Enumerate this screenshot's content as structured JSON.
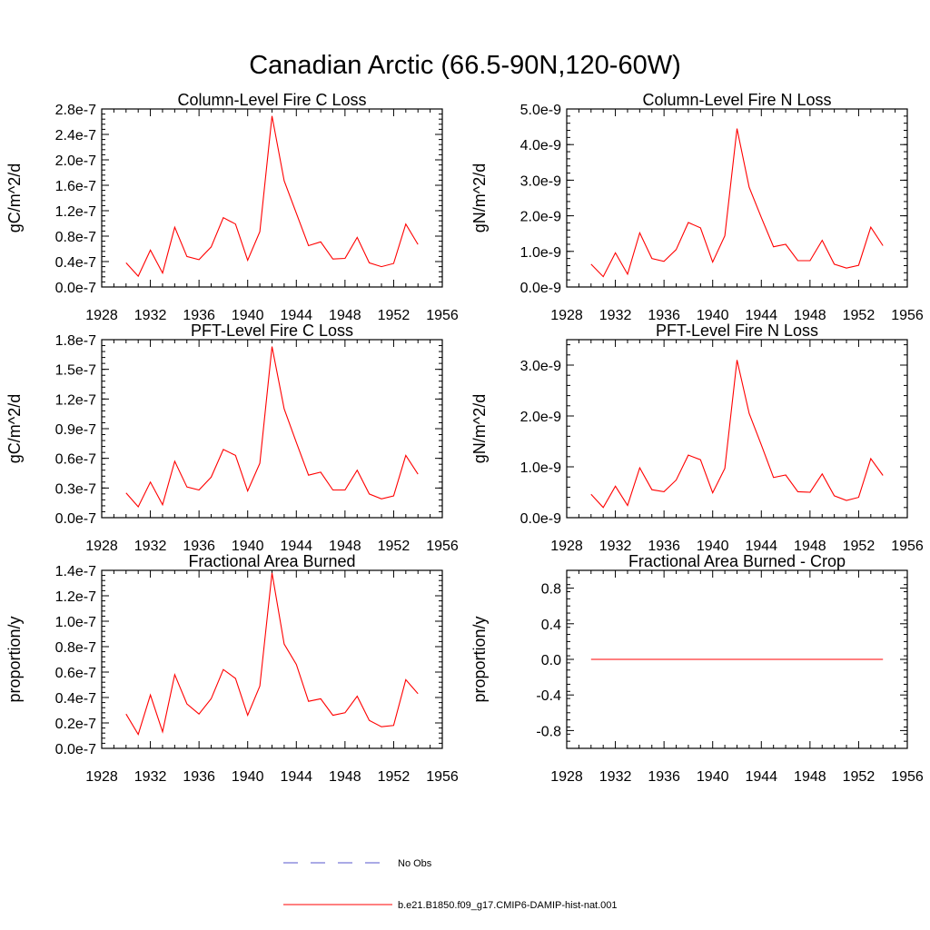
{
  "figure": {
    "title": "Canadian Arctic (66.5-90N,120-60W)"
  },
  "chart_data": [
    {
      "type": "line",
      "title": "Column-Level Fire C Loss",
      "ylabel": "gC/m^2/d",
      "xlim": [
        1928,
        1956
      ],
      "ylim": [
        0,
        2.8e-07
      ],
      "xticks": [
        "1928",
        "1932",
        "1936",
        "1940",
        "1944",
        "1948",
        "1952",
        "1956"
      ],
      "yticks": [
        {
          "v": 0,
          "label": "0.0e-7"
        },
        {
          "v": 4e-08,
          "label": "0.4e-7"
        },
        {
          "v": 8e-08,
          "label": "0.8e-7"
        },
        {
          "v": 1.2e-07,
          "label": "1.2e-7"
        },
        {
          "v": 1.6e-07,
          "label": "1.6e-7"
        },
        {
          "v": 2e-07,
          "label": "2.0e-7"
        },
        {
          "v": 2.4e-07,
          "label": "2.4e-7"
        },
        {
          "v": 2.8e-07,
          "label": "2.8e-7"
        }
      ],
      "series": [
        {
          "name": "b.e21.B1850.f09_g17.CMIP6-DAMIP-hist-nat.001",
          "color": "#ff0000",
          "x": [
            1930,
            1931,
            1932,
            1933,
            1934,
            1935,
            1936,
            1937,
            1938,
            1939,
            1940,
            1941,
            1942,
            1943,
            1944,
            1945,
            1946,
            1947,
            1948,
            1949,
            1950,
            1951,
            1952,
            1953,
            1954
          ],
          "y": [
            3.8e-08,
            1.7e-08,
            5.8e-08,
            2.2e-08,
            9.4e-08,
            4.8e-08,
            4.3e-08,
            6.3e-08,
            1.09e-07,
            9.9e-08,
            4.2e-08,
            8.7e-08,
            2.69e-07,
            1.67e-07,
            1.16e-07,
            6.5e-08,
            7.1e-08,
            4.4e-08,
            4.5e-08,
            7.8e-08,
            3.8e-08,
            3.2e-08,
            3.7e-08,
            9.9e-08,
            6.7e-08
          ]
        }
      ]
    },
    {
      "type": "line",
      "title": "Column-Level Fire N Loss",
      "ylabel": "gN/m^2/d",
      "xlim": [
        1928,
        1956
      ],
      "ylim": [
        0,
        5e-09
      ],
      "xticks": [
        "1928",
        "1932",
        "1936",
        "1940",
        "1944",
        "1948",
        "1952",
        "1956"
      ],
      "yticks": [
        {
          "v": 0,
          "label": "0.0e-9"
        },
        {
          "v": 1e-09,
          "label": "1.0e-9"
        },
        {
          "v": 2e-09,
          "label": "2.0e-9"
        },
        {
          "v": 3e-09,
          "label": "3.0e-9"
        },
        {
          "v": 4e-09,
          "label": "4.0e-9"
        },
        {
          "v": 5e-09,
          "label": "5.0e-9"
        }
      ],
      "series": [
        {
          "name": "b.e21.B1850.f09_g17.CMIP6-DAMIP-hist-nat.001",
          "color": "#ff0000",
          "x": [
            1930,
            1931,
            1932,
            1933,
            1934,
            1935,
            1936,
            1937,
            1938,
            1939,
            1940,
            1941,
            1942,
            1943,
            1944,
            1945,
            1946,
            1947,
            1948,
            1949,
            1950,
            1951,
            1952,
            1953,
            1954
          ],
          "y": [
            6.4e-10,
            2.9e-10,
            9.6e-10,
            3.6e-10,
            1.52e-09,
            8e-10,
            7.2e-10,
            1.05e-09,
            1.81e-09,
            1.66e-09,
            7e-10,
            1.44e-09,
            4.45e-09,
            2.8e-09,
            1.95e-09,
            1.13e-09,
            1.2e-09,
            7.4e-10,
            7.4e-10,
            1.31e-09,
            6.4e-10,
            5.3e-10,
            6.1e-10,
            1.68e-09,
            1.16e-09
          ]
        }
      ]
    },
    {
      "type": "line",
      "title": "PFT-Level Fire C Loss",
      "ylabel": "gC/m^2/d",
      "xlim": [
        1928,
        1956
      ],
      "ylim": [
        0,
        1.8e-07
      ],
      "xticks": [
        "1928",
        "1932",
        "1936",
        "1940",
        "1944",
        "1948",
        "1952",
        "1956"
      ],
      "yticks": [
        {
          "v": 0,
          "label": "0.0e-7"
        },
        {
          "v": 3e-08,
          "label": "0.3e-7"
        },
        {
          "v": 6e-08,
          "label": "0.6e-7"
        },
        {
          "v": 9e-08,
          "label": "0.9e-7"
        },
        {
          "v": 1.2e-07,
          "label": "1.2e-7"
        },
        {
          "v": 1.5e-07,
          "label": "1.5e-7"
        },
        {
          "v": 1.8e-07,
          "label": "1.8e-7"
        }
      ],
      "series": [
        {
          "name": "b.e21.B1850.f09_g17.CMIP6-DAMIP-hist-nat.001",
          "color": "#ff0000",
          "x": [
            1930,
            1931,
            1932,
            1933,
            1934,
            1935,
            1936,
            1937,
            1938,
            1939,
            1940,
            1941,
            1942,
            1943,
            1944,
            1945,
            1946,
            1947,
            1948,
            1949,
            1950,
            1951,
            1952,
            1953,
            1954
          ],
          "y": [
            2.5e-08,
            1.1e-08,
            3.6e-08,
            1.3e-08,
            5.7e-08,
            3.1e-08,
            2.8e-08,
            4.1e-08,
            6.9e-08,
            6.3e-08,
            2.7e-08,
            5.5e-08,
            1.73e-07,
            1.1e-07,
            7.6e-08,
            4.3e-08,
            4.6e-08,
            2.8e-08,
            2.8e-08,
            4.8e-08,
            2.4e-08,
            1.9e-08,
            2.2e-08,
            6.3e-08,
            4.4e-08
          ]
        }
      ]
    },
    {
      "type": "line",
      "title": "PFT-Level Fire N Loss",
      "ylabel": "gN/m^2/d",
      "xlim": [
        1928,
        1956
      ],
      "ylim": [
        0,
        3.5e-09
      ],
      "xticks": [
        "1928",
        "1932",
        "1936",
        "1940",
        "1944",
        "1948",
        "1952",
        "1956"
      ],
      "yticks": [
        {
          "v": 0,
          "label": "0.0e-9"
        },
        {
          "v": 1e-09,
          "label": "1.0e-9"
        },
        {
          "v": 2e-09,
          "label": "2.0e-9"
        },
        {
          "v": 3e-09,
          "label": "3.0e-9"
        }
      ],
      "series": [
        {
          "name": "b.e21.B1850.f09_g17.CMIP6-DAMIP-hist-nat.001",
          "color": "#ff0000",
          "x": [
            1930,
            1931,
            1932,
            1933,
            1934,
            1935,
            1936,
            1937,
            1938,
            1939,
            1940,
            1941,
            1942,
            1943,
            1944,
            1945,
            1946,
            1947,
            1948,
            1949,
            1950,
            1951,
            1952,
            1953,
            1954
          ],
          "y": [
            4.6e-10,
            2e-10,
            6.2e-10,
            2.4e-10,
            9.8e-10,
            5.5e-10,
            5.1e-10,
            7.4e-10,
            1.23e-09,
            1.14e-09,
            4.9e-10,
            9.7e-10,
            3.1e-09,
            2.05e-09,
            1.43e-09,
            7.9e-10,
            8.4e-10,
            5.1e-10,
            5e-10,
            8.6e-10,
            4.3e-10,
            3.4e-10,
            4e-10,
            1.16e-09,
            8.3e-10
          ]
        }
      ]
    },
    {
      "type": "line",
      "title": "Fractional Area Burned",
      "ylabel": "proportion/y",
      "xlim": [
        1928,
        1956
      ],
      "ylim": [
        0,
        1.4e-07
      ],
      "xticks": [
        "1928",
        "1932",
        "1936",
        "1940",
        "1944",
        "1948",
        "1952",
        "1956"
      ],
      "yticks": [
        {
          "v": 0,
          "label": "0.0e-7"
        },
        {
          "v": 2e-08,
          "label": "0.2e-7"
        },
        {
          "v": 4e-08,
          "label": "0.4e-7"
        },
        {
          "v": 6e-08,
          "label": "0.6e-7"
        },
        {
          "v": 8e-08,
          "label": "0.8e-7"
        },
        {
          "v": 1e-07,
          "label": "1.0e-7"
        },
        {
          "v": 1.2e-07,
          "label": "1.2e-7"
        },
        {
          "v": 1.4e-07,
          "label": "1.4e-7"
        }
      ],
      "series": [
        {
          "name": "b.e21.B1850.f09_g17.CMIP6-DAMIP-hist-nat.001",
          "color": "#ff0000",
          "x": [
            1930,
            1931,
            1932,
            1933,
            1934,
            1935,
            1936,
            1937,
            1938,
            1939,
            1940,
            1941,
            1942,
            1943,
            1944,
            1945,
            1946,
            1947,
            1948,
            1949,
            1950,
            1951,
            1952,
            1953,
            1954
          ],
          "y": [
            2.7e-08,
            1.1e-08,
            4.2e-08,
            1.3e-08,
            5.8e-08,
            3.5e-08,
            2.7e-08,
            3.9e-08,
            6.2e-08,
            5.5e-08,
            2.6e-08,
            4.9e-08,
            1.38e-07,
            8.2e-08,
            6.6e-08,
            3.7e-08,
            3.9e-08,
            2.6e-08,
            2.8e-08,
            4.1e-08,
            2.2e-08,
            1.7e-08,
            1.8e-08,
            5.4e-08,
            4.3e-08
          ]
        }
      ]
    },
    {
      "type": "line",
      "title": "Fractional Area Burned - Crop",
      "ylabel": "proportion/y",
      "xlim": [
        1928,
        1956
      ],
      "ylim": [
        -1.0,
        1.0
      ],
      "xticks": [
        "1928",
        "1932",
        "1936",
        "1940",
        "1944",
        "1948",
        "1952",
        "1956"
      ],
      "yticks": [
        {
          "v": -0.8,
          "label": "-0.8"
        },
        {
          "v": -0.4,
          "label": "-0.4"
        },
        {
          "v": 0.0,
          "label": "0.0"
        },
        {
          "v": 0.4,
          "label": "0.4"
        },
        {
          "v": 0.8,
          "label": "0.8"
        }
      ],
      "series": [
        {
          "name": "b.e21.B1850.f09_g17.CMIP6-DAMIP-hist-nat.001",
          "color": "#ff0000",
          "x": [
            1930,
            1931,
            1932,
            1933,
            1934,
            1935,
            1936,
            1937,
            1938,
            1939,
            1940,
            1941,
            1942,
            1943,
            1944,
            1945,
            1946,
            1947,
            1948,
            1949,
            1950,
            1951,
            1952,
            1953,
            1954
          ],
          "y": [
            0,
            0,
            0,
            0,
            0,
            0,
            0,
            0,
            0,
            0,
            0,
            0,
            0,
            0,
            0,
            0,
            0,
            0,
            0,
            0,
            0,
            0,
            0,
            0,
            0
          ]
        }
      ]
    }
  ],
  "legend": {
    "entries": [
      {
        "label": "No Obs",
        "color": "#5555cc",
        "style": "dashed"
      },
      {
        "label": "b.e21.B1850.f09_g17.CMIP6-DAMIP-hist-nat.001",
        "color": "#ff0000",
        "style": "solid"
      }
    ]
  }
}
